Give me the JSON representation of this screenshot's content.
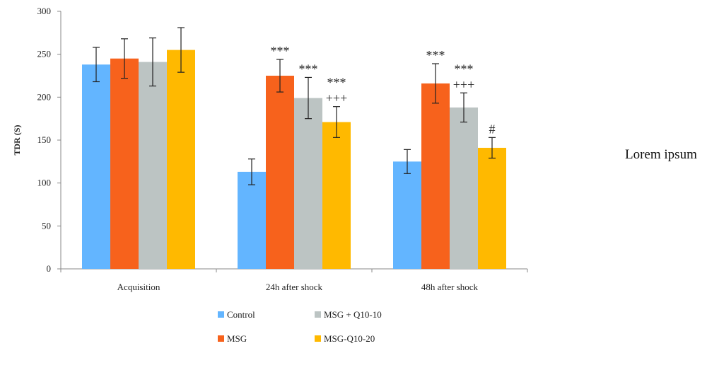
{
  "chart_data": {
    "type": "bar",
    "title": "",
    "xlabel": "",
    "ylabel": "TDR (S)",
    "ylim": [
      0,
      300
    ],
    "yticks": [
      0,
      50,
      100,
      150,
      200,
      250,
      300
    ],
    "grid": false,
    "legend_position": "bottom",
    "categories": [
      "Acquisition",
      "24h after shock",
      "48h after shock"
    ],
    "series": [
      {
        "name": "Control",
        "color": "#63b5ff",
        "values": [
          238,
          113,
          125
        ],
        "errors": [
          20,
          15,
          14
        ]
      },
      {
        "name": "MSG",
        "color": "#f7621c",
        "values": [
          245,
          225,
          216
        ],
        "errors": [
          23,
          19,
          23
        ]
      },
      {
        "name": "MSG + Q10-10",
        "color": "#bcc4c3",
        "values": [
          241,
          199,
          188
        ],
        "errors": [
          28,
          24,
          17
        ]
      },
      {
        "name": "MSG-Q10-20",
        "color": "#ffb900",
        "values": [
          255,
          171,
          141
        ],
        "errors": [
          26,
          18,
          12
        ]
      }
    ],
    "annotations": [
      {
        "category": 1,
        "series": 1,
        "lines": [
          "***"
        ]
      },
      {
        "category": 1,
        "series": 2,
        "lines": [
          "***"
        ]
      },
      {
        "category": 1,
        "series": 3,
        "lines": [
          "***",
          "+++"
        ]
      },
      {
        "category": 2,
        "series": 1,
        "lines": [
          "***"
        ]
      },
      {
        "category": 2,
        "series": 2,
        "lines": [
          "***",
          "+++"
        ]
      },
      {
        "category": 2,
        "series": 3,
        "lines": [
          "#"
        ]
      }
    ]
  },
  "side_text": "Lorem ipsum"
}
